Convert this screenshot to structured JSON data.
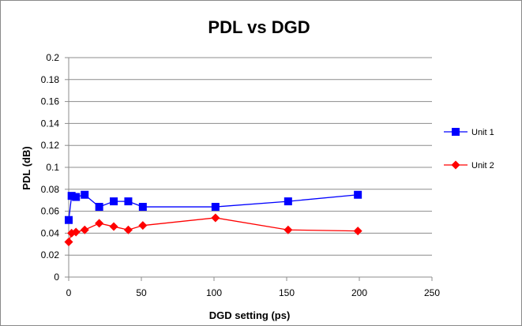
{
  "chart_data": {
    "type": "scatter",
    "title": "PDL vs DGD",
    "xlabel": "DGD setting (ps)",
    "ylabel": "PDL (dB)",
    "xlim": [
      0,
      250
    ],
    "ylim": [
      0,
      0.2
    ],
    "xticks": [
      "0",
      "50",
      "100",
      "150",
      "200",
      "250"
    ],
    "yticks": [
      "0",
      "0.02",
      "0.04",
      "0.06",
      "0.08",
      "0.1",
      "0.12",
      "0.14",
      "0.16",
      "0.18",
      "0.2"
    ],
    "grid": "horizontal",
    "legend_position": "right",
    "series": [
      {
        "name": "Unit 1",
        "color": "#0000ff",
        "marker": "square",
        "x": [
          0,
          2,
          5,
          11,
          21,
          31,
          41,
          51,
          101,
          151,
          199
        ],
        "y": [
          0.052,
          0.074,
          0.073,
          0.075,
          0.064,
          0.069,
          0.069,
          0.064,
          0.064,
          0.069,
          0.075
        ]
      },
      {
        "name": "Unit 2",
        "color": "#ff0000",
        "marker": "diamond",
        "x": [
          0,
          2,
          5,
          11,
          21,
          31,
          41,
          51,
          101,
          151,
          199
        ],
        "y": [
          0.032,
          0.04,
          0.041,
          0.043,
          0.049,
          0.046,
          0.043,
          0.047,
          0.054,
          0.043,
          0.042
        ]
      }
    ]
  }
}
